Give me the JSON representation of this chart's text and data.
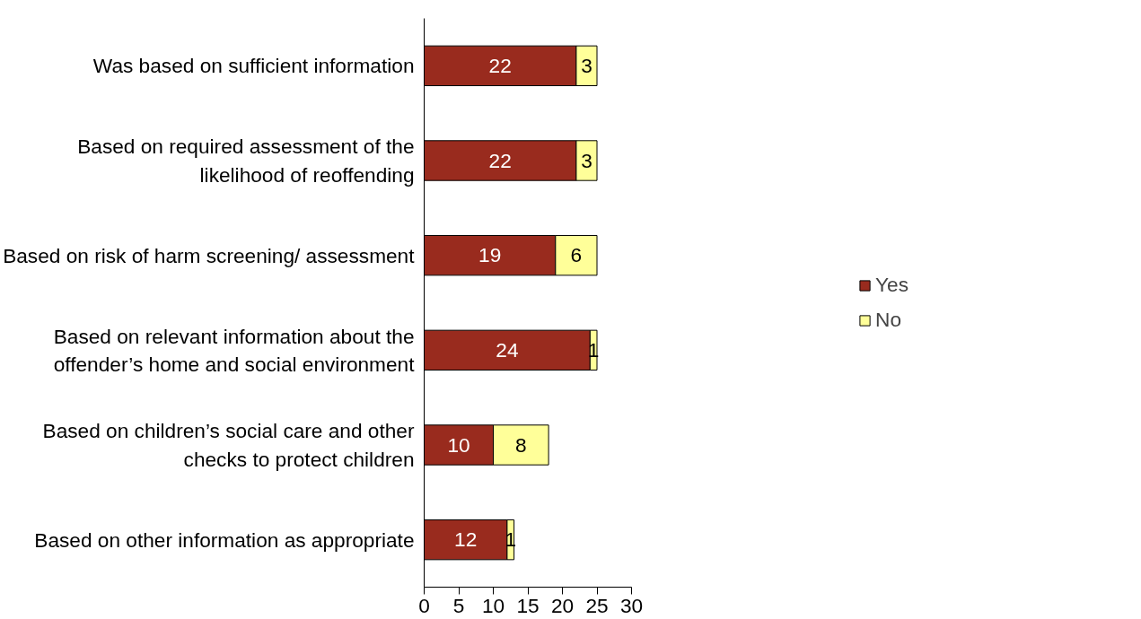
{
  "chart_data": {
    "type": "bar",
    "orientation": "horizontal",
    "stacked": true,
    "data_labels": true,
    "grid": false,
    "legend": "right",
    "categories": [
      "Was based on sufficient information",
      "Based on required assessment of the likelihood of reoffending",
      "Based on risk of harm screening/ assessment",
      "Based on relevant information about the offender’s home and social environment",
      "Based on children’s social care and other checks to protect children",
      "Based on other information as appropriate"
    ],
    "series": [
      {
        "name": "Yes",
        "color": "#992b1e",
        "values": [
          22,
          22,
          19,
          24,
          10,
          12
        ]
      },
      {
        "name": "No",
        "color": "#ffff99",
        "values": [
          3,
          3,
          6,
          1,
          8,
          1
        ]
      }
    ],
    "xlim": [
      0,
      30
    ],
    "xticks": [
      0,
      5,
      10,
      15,
      20,
      25,
      30
    ]
  }
}
